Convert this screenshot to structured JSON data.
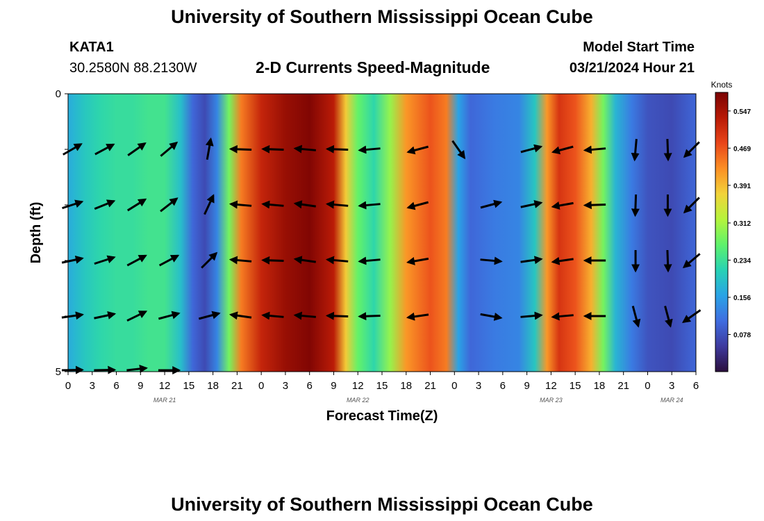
{
  "header": {
    "title": "University of Southern Mississippi Ocean Cube",
    "station_id": "KATA1",
    "station_coords": "30.2580N  88.2130W",
    "plot_title": "2-D Currents Speed-Magnitude",
    "model_start_label": "Model Start Time",
    "model_start_value": "03/21/2024 Hour 21"
  },
  "footer": {
    "title": "University of Southern Mississippi Ocean Cube"
  },
  "chart_data": {
    "type": "heatmap",
    "title": "2-D Currents Speed-Magnitude",
    "xlabel": "Forecast Time(Z)",
    "ylabel": "Depth (ft)",
    "y_ticks": [
      "0",
      "5"
    ],
    "ylim": [
      0,
      5
    ],
    "x_tick_labels": [
      "0",
      "3",
      "6",
      "9",
      "12",
      "15",
      "18",
      "21",
      "0",
      "3",
      "6",
      "9",
      "12",
      "15",
      "18",
      "21",
      "0",
      "3",
      "6",
      "9",
      "12",
      "15",
      "18",
      "21",
      "0",
      "3",
      "6"
    ],
    "x_hours": [
      0,
      3,
      6,
      9,
      12,
      15,
      18,
      21,
      24,
      27,
      30,
      33,
      36,
      39,
      42,
      45,
      48,
      51,
      54,
      57,
      60,
      63,
      66,
      69,
      72,
      75,
      78
    ],
    "date_labels": [
      {
        "label": "MAR 21",
        "hour": 12
      },
      {
        "label": "MAR 22",
        "hour": 36
      },
      {
        "label": "MAR 23",
        "hour": 60
      },
      {
        "label": "MAR 24",
        "hour": 75
      }
    ],
    "colorbar": {
      "unit": "Knots",
      "ticks": [
        0.078,
        0.156,
        0.234,
        0.312,
        0.391,
        0.469,
        0.547
      ],
      "tick_labels": [
        "0.078",
        "0.156",
        "0.234",
        "0.312",
        "0.391",
        "0.469",
        "0.547"
      ],
      "range": [
        0.0,
        0.586
      ],
      "colors": [
        "#2b0f3d",
        "#3e3a9e",
        "#3f6de0",
        "#2aa3e6",
        "#27d2b4",
        "#5ef26b",
        "#b5f43c",
        "#f2d33a",
        "#fb8f25",
        "#e9461a",
        "#b81a06",
        "#7a0403"
      ]
    },
    "depth_rows": [
      0,
      1,
      2,
      3,
      4,
      5
    ],
    "speed_profile": [
      {
        "hour": 0,
        "speed": 0.17
      },
      {
        "hour": 2,
        "speed": 0.2
      },
      {
        "hour": 4,
        "speed": 0.22
      },
      {
        "hour": 6,
        "speed": 0.23
      },
      {
        "hour": 8,
        "speed": 0.23
      },
      {
        "hour": 10,
        "speed": 0.24
      },
      {
        "hour": 12,
        "speed": 0.24
      },
      {
        "hour": 14,
        "speed": 0.19
      },
      {
        "hour": 15.5,
        "speed": 0.1
      },
      {
        "hour": 17,
        "speed": 0.07
      },
      {
        "hour": 18.5,
        "speed": 0.13
      },
      {
        "hour": 20,
        "speed": 0.28
      },
      {
        "hour": 21.5,
        "speed": 0.44
      },
      {
        "hour": 24,
        "speed": 0.52
      },
      {
        "hour": 27,
        "speed": 0.56
      },
      {
        "hour": 30,
        "speed": 0.58
      },
      {
        "hour": 33,
        "speed": 0.53
      },
      {
        "hour": 34.5,
        "speed": 0.38
      },
      {
        "hour": 36,
        "speed": 0.27
      },
      {
        "hour": 38,
        "speed": 0.22
      },
      {
        "hour": 40,
        "speed": 0.3
      },
      {
        "hour": 42,
        "speed": 0.42
      },
      {
        "hour": 45,
        "speed": 0.47
      },
      {
        "hour": 47,
        "speed": 0.44
      },
      {
        "hour": 48.5,
        "speed": 0.16
      },
      {
        "hour": 50,
        "speed": 0.1
      },
      {
        "hour": 53,
        "speed": 0.12
      },
      {
        "hour": 56,
        "speed": 0.13
      },
      {
        "hour": 58,
        "speed": 0.2
      },
      {
        "hour": 59.5,
        "speed": 0.42
      },
      {
        "hour": 61,
        "speed": 0.5
      },
      {
        "hour": 63,
        "speed": 0.47
      },
      {
        "hour": 65,
        "speed": 0.4
      },
      {
        "hour": 66.5,
        "speed": 0.28
      },
      {
        "hour": 68,
        "speed": 0.18
      },
      {
        "hour": 70,
        "speed": 0.12
      },
      {
        "hour": 72,
        "speed": 0.08
      },
      {
        "hour": 75,
        "speed": 0.07
      },
      {
        "hour": 78,
        "speed": 0.1
      }
    ],
    "vectors": [
      {
        "hour": 0.5,
        "depth": 1,
        "dir_deg": 60
      },
      {
        "hour": 0.5,
        "depth": 2,
        "dir_deg": 72
      },
      {
        "hour": 0.5,
        "depth": 3,
        "dir_deg": 78
      },
      {
        "hour": 0.5,
        "depth": 4,
        "dir_deg": 82
      },
      {
        "hour": 0.5,
        "depth": 5,
        "dir_deg": 80
      },
      {
        "hour": 4.5,
        "depth": 1,
        "dir_deg": 62
      },
      {
        "hour": 4.5,
        "depth": 2,
        "dir_deg": 68
      },
      {
        "hour": 4.5,
        "depth": 3,
        "dir_deg": 72
      },
      {
        "hour": 4.5,
        "depth": 4,
        "dir_deg": 78
      },
      {
        "hour": 4.5,
        "depth": 5,
        "dir_deg": 80
      },
      {
        "hour": 8.5,
        "depth": 1,
        "dir_deg": 55
      },
      {
        "hour": 8.5,
        "depth": 2,
        "dir_deg": 58
      },
      {
        "hour": 8.5,
        "depth": 3,
        "dir_deg": 62
      },
      {
        "hour": 8.5,
        "depth": 4,
        "dir_deg": 64
      },
      {
        "hour": 8.5,
        "depth": 5,
        "dir_deg": 70
      },
      {
        "hour": 12.5,
        "depth": 1,
        "dir_deg": 50
      },
      {
        "hour": 12.5,
        "depth": 2,
        "dir_deg": 52
      },
      {
        "hour": 12.5,
        "depth": 3,
        "dir_deg": 62
      },
      {
        "hour": 12.5,
        "depth": 4,
        "dir_deg": 75
      },
      {
        "hour": 12.5,
        "depth": 5,
        "dir_deg": 85
      },
      {
        "hour": 17.5,
        "depth": 1,
        "dir_deg": 10
      },
      {
        "hour": 17.5,
        "depth": 2,
        "dir_deg": 25
      },
      {
        "hour": 17.5,
        "depth": 3,
        "dir_deg": 45
      },
      {
        "hour": 17.5,
        "depth": 4,
        "dir_deg": 75
      },
      {
        "hour": 21.5,
        "depth": 1,
        "dir_deg": 272
      },
      {
        "hour": 21.5,
        "depth": 2,
        "dir_deg": 275
      },
      {
        "hour": 21.5,
        "depth": 3,
        "dir_deg": 275
      },
      {
        "hour": 21.5,
        "depth": 4,
        "dir_deg": 278
      },
      {
        "hour": 25.5,
        "depth": 1,
        "dir_deg": 272
      },
      {
        "hour": 25.5,
        "depth": 2,
        "dir_deg": 275
      },
      {
        "hour": 25.5,
        "depth": 3,
        "dir_deg": 272
      },
      {
        "hour": 25.5,
        "depth": 4,
        "dir_deg": 275
      },
      {
        "hour": 29.5,
        "depth": 1,
        "dir_deg": 275
      },
      {
        "hour": 29.5,
        "depth": 2,
        "dir_deg": 278
      },
      {
        "hour": 29.5,
        "depth": 3,
        "dir_deg": 278
      },
      {
        "hour": 29.5,
        "depth": 4,
        "dir_deg": 275
      },
      {
        "hour": 33.5,
        "depth": 1,
        "dir_deg": 272
      },
      {
        "hour": 33.5,
        "depth": 2,
        "dir_deg": 275
      },
      {
        "hour": 33.5,
        "depth": 3,
        "dir_deg": 275
      },
      {
        "hour": 33.5,
        "depth": 4,
        "dir_deg": 272
      },
      {
        "hour": 37.5,
        "depth": 1,
        "dir_deg": 265
      },
      {
        "hour": 37.5,
        "depth": 2,
        "dir_deg": 265
      },
      {
        "hour": 37.5,
        "depth": 3,
        "dir_deg": 265
      },
      {
        "hour": 37.5,
        "depth": 4,
        "dir_deg": 268
      },
      {
        "hour": 43.5,
        "depth": 1,
        "dir_deg": 255
      },
      {
        "hour": 43.5,
        "depth": 2,
        "dir_deg": 255
      },
      {
        "hour": 43.5,
        "depth": 3,
        "dir_deg": 260
      },
      {
        "hour": 43.5,
        "depth": 4,
        "dir_deg": 262
      },
      {
        "hour": 48.5,
        "depth": 1,
        "dir_deg": 145
      },
      {
        "hour": 52.5,
        "depth": 2,
        "dir_deg": 75
      },
      {
        "hour": 52.5,
        "depth": 3,
        "dir_deg": 95
      },
      {
        "hour": 52.5,
        "depth": 4,
        "dir_deg": 100
      },
      {
        "hour": 57.5,
        "depth": 1,
        "dir_deg": 75
      },
      {
        "hour": 57.5,
        "depth": 2,
        "dir_deg": 78
      },
      {
        "hour": 57.5,
        "depth": 3,
        "dir_deg": 82
      },
      {
        "hour": 57.5,
        "depth": 4,
        "dir_deg": 85
      },
      {
        "hour": 61.5,
        "depth": 1,
        "dir_deg": 255
      },
      {
        "hour": 61.5,
        "depth": 2,
        "dir_deg": 260
      },
      {
        "hour": 61.5,
        "depth": 3,
        "dir_deg": 262
      },
      {
        "hour": 61.5,
        "depth": 4,
        "dir_deg": 265
      },
      {
        "hour": 65.5,
        "depth": 1,
        "dir_deg": 265
      },
      {
        "hour": 65.5,
        "depth": 2,
        "dir_deg": 268
      },
      {
        "hour": 65.5,
        "depth": 3,
        "dir_deg": 270
      },
      {
        "hour": 65.5,
        "depth": 4,
        "dir_deg": 270
      },
      {
        "hour": 70.5,
        "depth": 1,
        "dir_deg": 185
      },
      {
        "hour": 70.5,
        "depth": 2,
        "dir_deg": 182
      },
      {
        "hour": 70.5,
        "depth": 3,
        "dir_deg": 180
      },
      {
        "hour": 70.5,
        "depth": 4,
        "dir_deg": 165
      },
      {
        "hour": 74.5,
        "depth": 1,
        "dir_deg": 178
      },
      {
        "hour": 74.5,
        "depth": 2,
        "dir_deg": 180
      },
      {
        "hour": 74.5,
        "depth": 3,
        "dir_deg": 178
      },
      {
        "hour": 74.5,
        "depth": 4,
        "dir_deg": 165
      },
      {
        "hour": 77.5,
        "depth": 1,
        "dir_deg": 225
      },
      {
        "hour": 77.5,
        "depth": 2,
        "dir_deg": 225
      },
      {
        "hour": 77.5,
        "depth": 3,
        "dir_deg": 230
      },
      {
        "hour": 77.5,
        "depth": 4,
        "dir_deg": 235
      }
    ]
  }
}
